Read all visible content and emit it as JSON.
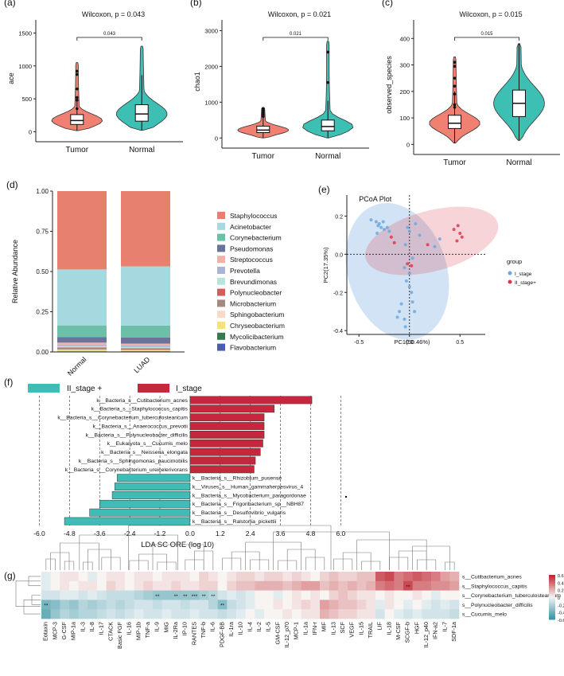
{
  "colors": {
    "tumor": "#f08071",
    "normal": "#3dbfb4",
    "ii_stage": "#3fbcb6",
    "i_stage": "#c5283d",
    "stage_i": "#6fa8dc",
    "stage_ii": "#d9394f"
  },
  "panel_a": {
    "label": "(a)",
    "title": "Wilcoxon, p = 0.043",
    "bracket": "0.043",
    "ylabel": "ace",
    "yticks": [
      "0",
      "500",
      "1000",
      "1500"
    ],
    "categories": [
      "Tumor",
      "Normal"
    ]
  },
  "panel_b": {
    "label": "(b)",
    "title": "Wilcoxon, p = 0.021",
    "bracket": "0.021",
    "ylabel": "chao1",
    "yticks": [
      "0",
      "1000",
      "2000",
      "3000"
    ],
    "categories": [
      "Tumor",
      "Normal"
    ]
  },
  "panel_c": {
    "label": "(c)",
    "title": "Wilcoxon, p = 0.015",
    "bracket": "0.015",
    "ylabel": "observed_species",
    "yticks": [
      "0",
      "100",
      "200",
      "300",
      "400"
    ],
    "categories": [
      "Tumor",
      "Normal"
    ]
  },
  "panel_d": {
    "label": "(d)",
    "label_e": "(e)",
    "label_f": "(f)",
    "label_g": "(g)"
  },
  "chart_data": [
    {
      "type": "violin",
      "panel": "a",
      "title": "Wilcoxon, p = 0.043",
      "ylabel": "ace",
      "ylim": [
        -80,
        1700
      ],
      "series": [
        {
          "name": "Tumor",
          "median": 170,
          "q1": 110,
          "q3": 260,
          "min": 15,
          "max": 1050,
          "outliers": [
            870,
            920,
            650,
            520,
            480,
            350
          ]
        },
        {
          "name": "Normal",
          "median": 270,
          "q1": 160,
          "q3": 410,
          "min": 20,
          "max": 1300,
          "outliers": []
        }
      ]
    },
    {
      "type": "violin",
      "panel": "b",
      "title": "Wilcoxon, p = 0.021",
      "ylabel": "chao1",
      "ylim": [
        -150,
        3300
      ],
      "series": [
        {
          "name": "Tumor",
          "median": 220,
          "q1": 150,
          "q3": 330,
          "min": 0,
          "max": 850,
          "outliers": [
            820,
            760,
            700,
            650,
            600
          ]
        },
        {
          "name": "Normal",
          "median": 320,
          "q1": 200,
          "q3": 500,
          "min": 0,
          "max": 2700,
          "outliers": [
            1550,
            2400
          ]
        }
      ]
    },
    {
      "type": "violin",
      "panel": "c",
      "title": "Wilcoxon, p = 0.015",
      "ylabel": "observed_species",
      "ylim": [
        -20,
        470
      ],
      "series": [
        {
          "name": "Tumor",
          "median": 80,
          "q1": 60,
          "q3": 110,
          "min": 5,
          "max": 330,
          "outliers": [
            310,
            295,
            250,
            220,
            190,
            150,
            140
          ]
        },
        {
          "name": "Normal",
          "median": 155,
          "q1": 105,
          "q3": 205,
          "min": 15,
          "max": 380,
          "outliers": []
        }
      ]
    },
    {
      "type": "stacked-bar",
      "panel": "d",
      "ylabel": "Relative Abundance",
      "ylim": [
        0,
        1
      ],
      "yticks": [
        "0.00",
        "0.25",
        "0.50",
        "0.75",
        "1.00"
      ],
      "categories": [
        "Normal",
        "LUAD"
      ],
      "series": [
        {
          "name": "Staphylococcus",
          "color": "#e8806f",
          "values": [
            0.487,
            0.468
          ]
        },
        {
          "name": "Acinetobacter",
          "color": "#a6d8e0",
          "values": [
            0.348,
            0.368
          ]
        },
        {
          "name": "Corynebacterium",
          "color": "#6cc0a8",
          "values": [
            0.072,
            0.075
          ]
        },
        {
          "name": "Pseudomonas",
          "color": "#6a7399",
          "values": [
            0.035,
            0.037
          ]
        },
        {
          "name": "Streptococcus",
          "color": "#f3b0a5",
          "values": [
            0.012,
            0.011
          ]
        },
        {
          "name": "Prevotella",
          "color": "#a9b4d6",
          "values": [
            0.01,
            0.01
          ]
        },
        {
          "name": "Brevundimonas",
          "color": "#b9e4dc",
          "values": [
            0.008,
            0.008
          ]
        },
        {
          "name": "Polynucleobacter",
          "color": "#d25d5d",
          "values": [
            0.007,
            0.006
          ]
        },
        {
          "name": "Microbacterium",
          "color": "#a58a80",
          "values": [
            0.006,
            0.005
          ]
        },
        {
          "name": "Sphingobacterium",
          "color": "#f8dac9",
          "values": [
            0.005,
            0.004
          ]
        },
        {
          "name": "Chryseobacterium",
          "color": "#f5e37a",
          "values": [
            0.004,
            0.003
          ]
        },
        {
          "name": "Mycolicibacterium",
          "color": "#357b52",
          "values": [
            0.003,
            0.003
          ]
        },
        {
          "name": "Flavobacterium",
          "color": "#4b5eab",
          "values": [
            0.003,
            0.002
          ]
        }
      ]
    },
    {
      "type": "scatter",
      "panel": "e",
      "title": "PCoA Plot",
      "xlabel": "PC1(50.46%)",
      "ylabel": "PC2(17.35%)",
      "xlim": [
        -0.62,
        0.75
      ],
      "ylim": [
        -0.42,
        0.31
      ],
      "xticks": [
        -0.5,
        0.0,
        0.5
      ],
      "yticks": [
        0.2,
        0.0,
        -0.2,
        -0.4
      ],
      "legend_title": "group",
      "series": [
        {
          "name": "I_stage",
          "points": [
            [
              -0.38,
              0.18
            ],
            [
              -0.33,
              0.17
            ],
            [
              -0.3,
              0.16
            ],
            [
              -0.31,
              0.15
            ],
            [
              -0.28,
              0.14
            ],
            [
              -0.26,
              0.17
            ],
            [
              -0.25,
              0.13
            ],
            [
              -0.32,
              0.11
            ],
            [
              -0.22,
              0.14
            ],
            [
              -0.2,
              0.12
            ],
            [
              -0.02,
              0.14
            ],
            [
              0.0,
              0.12
            ],
            [
              -0.04,
              0.05
            ],
            [
              0.03,
              -0.02
            ],
            [
              -0.05,
              -0.07
            ],
            [
              0.0,
              -0.1
            ],
            [
              -0.03,
              -0.14
            ],
            [
              0.0,
              -0.17
            ],
            [
              0.02,
              -0.2
            ],
            [
              -0.08,
              -0.26
            ],
            [
              -0.1,
              -0.3
            ],
            [
              -0.12,
              -0.33
            ],
            [
              -0.05,
              -0.34
            ],
            [
              -0.04,
              -0.38
            ],
            [
              0.05,
              -0.3
            ],
            [
              0.03,
              -0.25
            ],
            [
              0.25,
              0.04
            ],
            [
              0.3,
              0.08
            ],
            [
              0.1,
              0.1
            ],
            [
              0.06,
              0.16
            ]
          ]
        },
        {
          "name": "II_stage+",
          "points": [
            [
              -0.18,
              0.09
            ],
            [
              -0.15,
              0.06
            ],
            [
              0.02,
              -0.06
            ],
            [
              0.18,
              0.05
            ],
            [
              0.48,
              0.15
            ],
            [
              0.5,
              0.11
            ],
            [
              0.52,
              0.09
            ],
            [
              0.47,
              0.07
            ],
            [
              0.44,
              0.13
            ],
            [
              -0.02,
              -0.05
            ]
          ]
        }
      ]
    },
    {
      "type": "bar",
      "orientation": "horizontal",
      "panel": "f",
      "xlabel": "LDA SC ORE (log 10)",
      "xlim": [
        -6.3,
        6.4
      ],
      "xticks": [
        "-6.0",
        "-4.8",
        "-3.6",
        "-2.4",
        "-1.2",
        "0.0",
        "1.2",
        "2.4",
        "3.6",
        "4.8",
        "6.0"
      ],
      "legend": [
        "II_stage +",
        "I_stage"
      ],
      "categories": [
        "k__Bacteria_s__Cutibacterium_acnes",
        "k__Bacteria_s__Staphylococcus_capitis",
        "k__Bacteria_s__Corynebacterium_tuberculostearicum",
        "k__Bacteria_s__Anaerococcus_prevotii",
        "k__Bacteria_s__Polynucleobacter_difficilis",
        "k__Eukaryota_s__Cucumis_melo",
        "k__Bacteria_s__Neisseria_elongata",
        "k__Bacteria_s__Sphingomonas_paucimobilis",
        "k__Bacteria_s__Corynebacterium_ureicelerivorans",
        "k__Bacteria_s__Rhizobium_pusense",
        "k__Viruses_s__Human_gammaherpesvirus_4",
        "k__Bacteria_s__Mycobacterium_paragordonae",
        "k__Bacteria_s__Frigoribacterium_sp__NBH87",
        "k__Bacteria_s__Desulfovibrio_vulgaris",
        "k__Bacteria_s__Ralstonia_pickettii"
      ],
      "values": [
        4.85,
        3.35,
        2.95,
        2.95,
        2.95,
        2.9,
        2.8,
        2.6,
        2.55,
        -2.9,
        -3.0,
        -3.1,
        -3.6,
        -4.0,
        -5.0
      ]
    },
    {
      "type": "heatmap",
      "panel": "g",
      "colorbar": [
        -0.6,
        0.6
      ],
      "colorbar_ticks": [
        "0.6",
        "0.4",
        "0.2",
        "0",
        "-0.2",
        "-0.4",
        "-0.6"
      ],
      "rows": [
        "s__Cutibacterium_acnes",
        "s__Staphylococcus_capitis",
        "s__Corynebacterium_tuberculostearicum",
        "s__Polynucleobacter_difficilis",
        "s__Cucumis_melo"
      ],
      "columns": [
        "Eotaxin",
        "MCP-3",
        "G-CSF",
        "MIP-1a",
        "IL-3",
        "IL-8",
        "IL-17",
        "CTACK",
        "Basic FGF",
        "IL-16",
        "MIP-1b",
        "TNF-a",
        "IL-9",
        "MIG",
        "IL-2Ra",
        "IP-10",
        "RANTES",
        "TNF-b",
        "IL-6",
        "PDGF-BB",
        "IL-1ra",
        "IL-10",
        "IL-4",
        "IL-2",
        "IL-5",
        "GM-CSF",
        "IL-12_p70",
        "MCP-1",
        "IL-1a",
        "IFN-r",
        "MIF",
        "IL-13",
        "SCF",
        "VEGF",
        "IL-15",
        "TRAIL",
        "LIF",
        "IL-18",
        "M-CSF",
        "SCGF-b",
        "HGF",
        "IL-12_p40",
        "IFN-a2",
        "IL-7",
        "SDF-1a"
      ],
      "values": [
        [
          -0.05,
          0.0,
          0.05,
          0.05,
          0.0,
          -0.05,
          0.0,
          0.05,
          0.05,
          0.0,
          0.05,
          0.05,
          0.0,
          0.05,
          0.05,
          0.05,
          0.0,
          0.1,
          0.05,
          0.0,
          0.05,
          0.1,
          0.1,
          0.05,
          0.1,
          0.1,
          0.05,
          0.1,
          0.05,
          0.0,
          0.1,
          0.15,
          0.1,
          0.1,
          0.15,
          0.15,
          0.45,
          0.5,
          0.35,
          0.4,
          0.45,
          0.4,
          0.35,
          0.25,
          0.2
        ],
        [
          -0.05,
          0.0,
          0.05,
          0.0,
          0.05,
          0.05,
          0.0,
          0.1,
          0.05,
          0.0,
          0.05,
          0.1,
          0.05,
          0.05,
          0.1,
          0.05,
          0.05,
          0.1,
          0.1,
          0.0,
          0.1,
          0.15,
          0.15,
          0.2,
          0.2,
          0.2,
          0.15,
          0.2,
          0.25,
          0.25,
          0.15,
          0.2,
          0.15,
          0.2,
          0.15,
          0.2,
          0.35,
          0.4,
          0.35,
          0.5,
          0.35,
          0.35,
          0.3,
          0.3,
          0.25
        ],
        [
          -0.1,
          -0.1,
          -0.05,
          -0.05,
          -0.1,
          -0.05,
          -0.1,
          -0.15,
          -0.15,
          -0.15,
          -0.2,
          -0.25,
          -0.3,
          -0.3,
          -0.3,
          -0.3,
          -0.3,
          -0.25,
          -0.2,
          -0.1,
          -0.05,
          -0.1,
          -0.05,
          0.0,
          0.0,
          -0.05,
          0.0,
          0.05,
          0.0,
          0.05,
          0.0,
          0.1,
          0.15,
          0.1,
          0.05,
          0.05,
          0.0,
          0.05,
          0.0,
          0.0,
          0.05,
          0.0,
          -0.05,
          0.0,
          0.0
        ],
        [
          -0.4,
          -0.35,
          -0.25,
          -0.3,
          -0.2,
          -0.25,
          -0.2,
          -0.15,
          -0.2,
          -0.15,
          -0.1,
          -0.1,
          -0.15,
          -0.1,
          -0.1,
          -0.15,
          -0.1,
          -0.1,
          -0.2,
          -0.35,
          -0.15,
          -0.1,
          -0.05,
          0.0,
          0.0,
          0.05,
          0.0,
          0.05,
          0.1,
          0.05,
          0.25,
          0.2,
          0.15,
          0.15,
          0.1,
          0.05,
          -0.05,
          0.05,
          0.0,
          -0.05,
          0.0,
          -0.05,
          -0.1,
          -0.05,
          -0.1
        ],
        [
          -0.45,
          -0.3,
          -0.2,
          -0.25,
          -0.2,
          -0.2,
          -0.15,
          -0.1,
          -0.15,
          -0.1,
          -0.05,
          -0.1,
          -0.1,
          -0.05,
          -0.1,
          -0.1,
          -0.05,
          -0.1,
          -0.1,
          -0.15,
          -0.1,
          -0.05,
          0.0,
          -0.05,
          0.0,
          0.0,
          0.05,
          0.0,
          0.05,
          0.05,
          0.2,
          0.15,
          0.1,
          0.1,
          0.05,
          0.05,
          -0.1,
          0.0,
          -0.05,
          -0.1,
          -0.05,
          -0.1,
          -0.1,
          -0.1,
          -0.15
        ]
      ],
      "stars": [
        [
          1,
          39,
          "**"
        ],
        [
          2,
          12,
          "**"
        ],
        [
          2,
          14,
          "**"
        ],
        [
          2,
          15,
          "**"
        ],
        [
          2,
          16,
          "***"
        ],
        [
          2,
          17,
          "**"
        ],
        [
          2,
          18,
          "**"
        ],
        [
          3,
          0,
          "**"
        ],
        [
          3,
          19,
          "**"
        ]
      ]
    }
  ]
}
